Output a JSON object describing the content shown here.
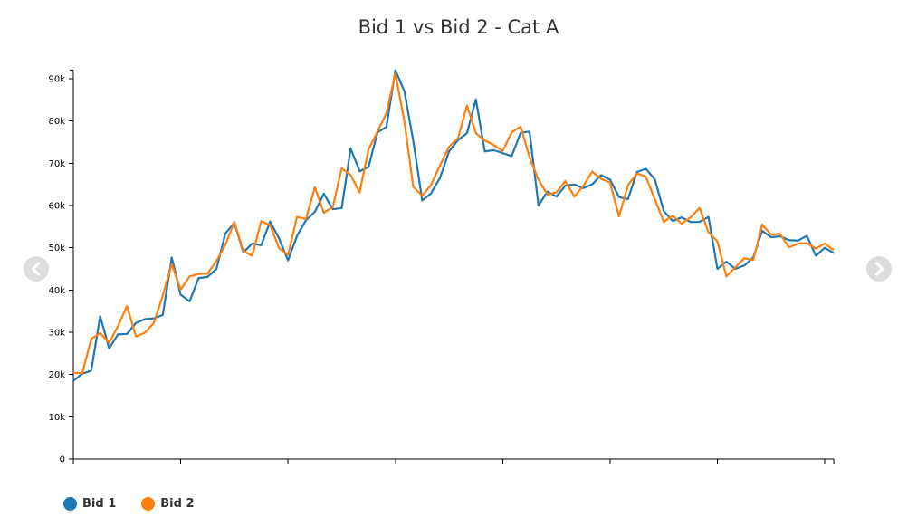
{
  "chart_data": {
    "type": "line",
    "title": "Bid 1 vs Bid 2 - Cat A",
    "xlabel": "",
    "ylabel": "",
    "ylim": [
      0,
      92000
    ],
    "y_ticks": [
      "0",
      "10k",
      "20k",
      "30k",
      "40k",
      "50k",
      "60k",
      "70k",
      "80k",
      "90k"
    ],
    "y_tick_values": [
      0,
      10000,
      20000,
      30000,
      40000,
      50000,
      60000,
      70000,
      80000,
      90000
    ],
    "x_tick_labels_visible": false,
    "x_tick_count": 8,
    "grid": false,
    "legend_position": "bottom-left",
    "series": [
      {
        "name": "Bid 1",
        "color": "#1f77b4",
        "values": [
          18500,
          20200,
          20900,
          33800,
          26200,
          29500,
          29600,
          32200,
          33100,
          33300,
          34100,
          47700,
          38900,
          37300,
          42800,
          43100,
          45000,
          53400,
          55900,
          48900,
          51000,
          50600,
          56200,
          52200,
          47000,
          52800,
          56500,
          58500,
          62800,
          59100,
          59400,
          73500,
          68100,
          69100,
          77300,
          78600,
          92000,
          87100,
          75300,
          61200,
          62900,
          66600,
          72800,
          75500,
          77100,
          85100,
          72800,
          73100,
          72400,
          71700,
          77200,
          77500,
          60000,
          63300,
          62100,
          64700,
          65000,
          64100,
          65000,
          67200,
          66100,
          62000,
          61500,
          67900,
          68700,
          66200,
          58700,
          56300,
          57200,
          56100,
          56100,
          57300,
          45000,
          46700,
          45000,
          45800,
          47700,
          54000,
          52500,
          52700,
          51800,
          51700,
          52800,
          48100,
          50000,
          48700
        ]
      },
      {
        "name": "Bid 2",
        "color": "#ff7f0e",
        "values": [
          20400,
          20300,
          28400,
          29800,
          27500,
          31500,
          36200,
          29000,
          29900,
          32200,
          38700,
          46100,
          40100,
          43200,
          43800,
          43900,
          46900,
          50700,
          56100,
          49200,
          48100,
          56300,
          55400,
          49900,
          48300,
          57300,
          56800,
          64300,
          58300,
          59600,
          68800,
          67200,
          63100,
          73300,
          77500,
          81900,
          91200,
          80000,
          64400,
          62300,
          64900,
          69600,
          73900,
          75900,
          83700,
          77100,
          75400,
          74300,
          72900,
          77300,
          78700,
          71400,
          66100,
          62600,
          63100,
          65800,
          62100,
          64600,
          68000,
          66300,
          65400,
          57400,
          64800,
          67600,
          66800,
          61500,
          56100,
          57600,
          55700,
          57200,
          59400,
          53700,
          51500,
          43200,
          45400,
          47500,
          47100,
          55500,
          53100,
          53300,
          50100,
          51000,
          51100,
          49800,
          51000,
          49400
        ]
      }
    ]
  },
  "nav": {
    "prev_label": "Previous chart",
    "next_label": "Next chart"
  }
}
